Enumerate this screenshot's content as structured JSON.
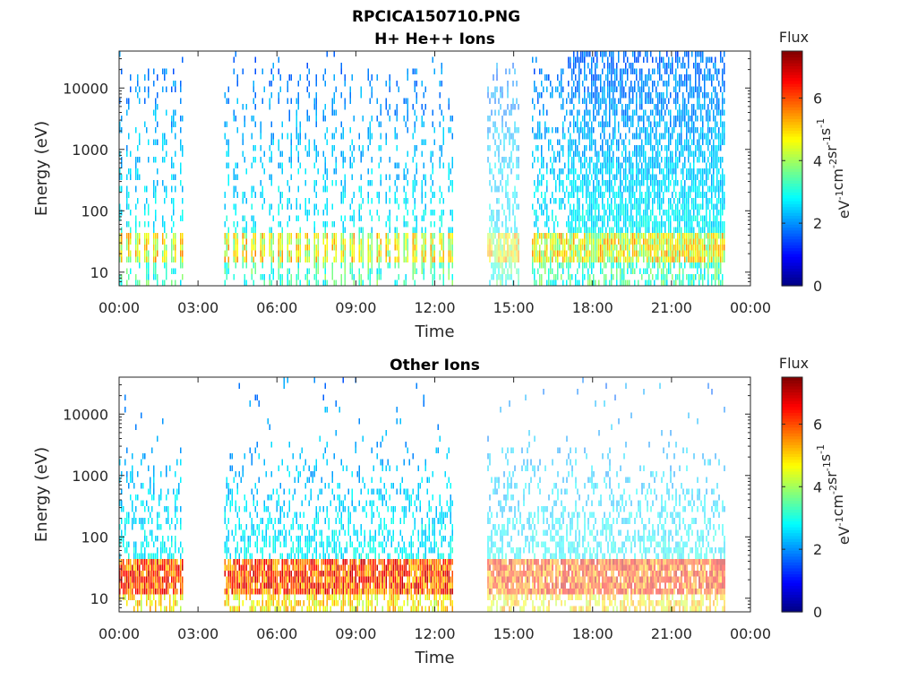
{
  "figure_title": "RPCICA150710.PNG",
  "colors": {
    "axis": "#262626",
    "background": "#ffffff",
    "colormap": "jet"
  },
  "chart_data": [
    {
      "type": "heatmap",
      "title": "H+ He++ Ions",
      "xlabel": "Time",
      "ylabel": "Energy (eV)",
      "x_ticks": [
        "00:00",
        "03:00",
        "06:00",
        "09:00",
        "12:00",
        "15:00",
        "18:00",
        "21:00",
        "00:00"
      ],
      "x_range_hours": [
        0,
        24
      ],
      "y_scale": "log",
      "y_range": [
        6,
        40000
      ],
      "y_ticks": [
        "10",
        "100",
        "1000",
        "10000"
      ],
      "y_tick_values": [
        10,
        100,
        1000,
        10000
      ],
      "colorbar": {
        "title": "Flux",
        "unit": "eV-1cm-2sr-1s-1",
        "unit_parts": [
          {
            "base": "eV",
            "sup": "-1"
          },
          {
            "base": "cm",
            "sup": "-2"
          },
          {
            "base": "sr",
            "sup": "-1"
          },
          {
            "base": "s",
            "sup": "-1"
          }
        ],
        "range": [
          0,
          7.5
        ],
        "ticks": [
          "0",
          "2",
          "4",
          "6"
        ],
        "tick_values": [
          0,
          2,
          4,
          6
        ]
      },
      "data_intervals_hours": [
        [
          0.0,
          2.45
        ],
        [
          4.0,
          12.7
        ],
        [
          14.0,
          15.2
        ],
        [
          15.7,
          23.0
        ]
      ],
      "dense_interval_hours": [
        17.0,
        23.0
      ],
      "dominant_energy_band_eV": [
        15,
        45
      ],
      "typical_low_energy_flux": 4.5,
      "typical_high_energy_flux": 1.8
    },
    {
      "type": "heatmap",
      "title": "Other Ions",
      "xlabel": "Time",
      "ylabel": "Energy (eV)",
      "x_ticks": [
        "00:00",
        "03:00",
        "06:00",
        "09:00",
        "12:00",
        "15:00",
        "18:00",
        "21:00",
        "00:00"
      ],
      "x_range_hours": [
        0,
        24
      ],
      "y_scale": "log",
      "y_range": [
        6,
        40000
      ],
      "y_ticks": [
        "10",
        "100",
        "1000",
        "10000"
      ],
      "y_tick_values": [
        10,
        100,
        1000,
        10000
      ],
      "colorbar": {
        "title": "Flux",
        "unit": "eV-1cm-2sr-1s-1",
        "unit_parts": [
          {
            "base": "eV",
            "sup": "-1"
          },
          {
            "base": "cm",
            "sup": "-2"
          },
          {
            "base": "sr",
            "sup": "-1"
          },
          {
            "base": "s",
            "sup": "-1"
          }
        ],
        "range": [
          0,
          7.5
        ],
        "ticks": [
          "0",
          "2",
          "4",
          "6"
        ],
        "tick_values": [
          0,
          2,
          4,
          6
        ]
      },
      "data_intervals_hours": [
        [
          0.0,
          2.45
        ],
        [
          4.0,
          12.7
        ],
        [
          14.0,
          23.0
        ]
      ],
      "dominant_energy_band_eV": [
        12,
        45
      ],
      "typical_low_energy_flux": 6.0,
      "typical_high_energy_flux": 2.2
    }
  ]
}
